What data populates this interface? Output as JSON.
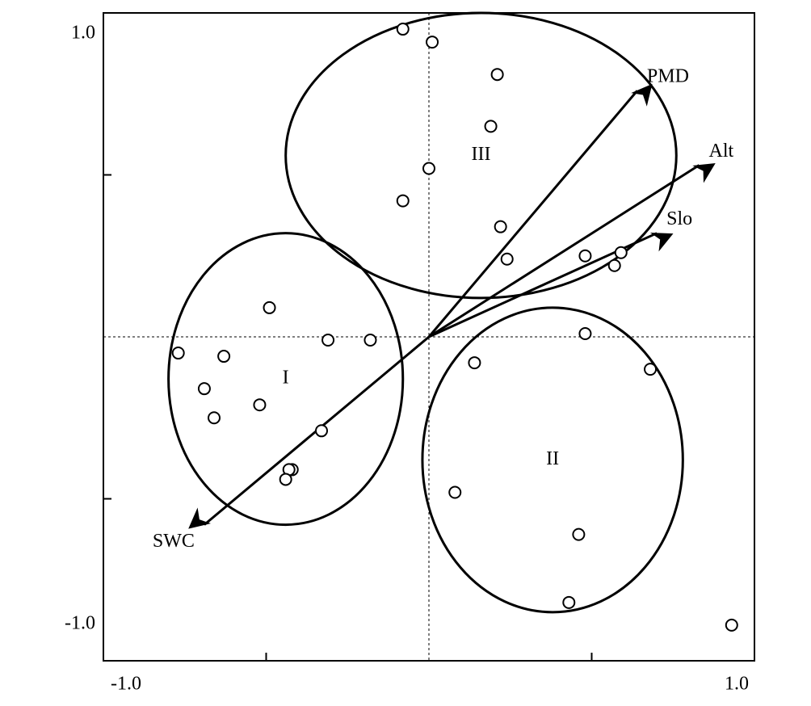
{
  "chart_data": {
    "type": "scatter",
    "xlim": [
      -1,
      1
    ],
    "ylim": [
      -1,
      1
    ],
    "xticks": [
      {
        "value": -1,
        "label": "-1.0"
      },
      {
        "value": -0.5,
        "label": null
      },
      {
        "value": 0.5,
        "label": null
      },
      {
        "value": 1,
        "label": "1.0"
      }
    ],
    "yticks": [
      {
        "value": -1,
        "label": "-1.0"
      },
      {
        "value": -0.5,
        "label": null
      },
      {
        "value": 0.5,
        "label": null
      },
      {
        "value": 1,
        "label": "1.0"
      }
    ],
    "zero_lines": true,
    "color": "#000000",
    "x": [
      -0.08,
      0.01,
      0.21,
      0.19,
      0.0,
      -0.08,
      0.22,
      0.24,
      0.48,
      0.59,
      0.57,
      -0.49,
      -0.31,
      -0.18,
      -0.77,
      -0.63,
      -0.69,
      -0.52,
      -0.66,
      -0.33,
      -0.42,
      -0.43,
      -0.44,
      0.48,
      0.14,
      0.68,
      0.08,
      0.46,
      0.43,
      0.93
    ],
    "values": [
      0.95,
      0.91,
      0.81,
      0.65,
      0.52,
      0.42,
      0.34,
      0.24,
      0.25,
      0.26,
      0.22,
      0.09,
      -0.01,
      -0.01,
      -0.05,
      -0.06,
      -0.16,
      -0.21,
      -0.25,
      -0.29,
      -0.41,
      -0.41,
      -0.44,
      0.01,
      -0.08,
      -0.1,
      -0.48,
      -0.61,
      -0.82,
      -0.89
    ],
    "arrows": [
      {
        "name": "PMD",
        "x": 0.64,
        "y": 0.76
      },
      {
        "name": "Alt",
        "x": 0.83,
        "y": 0.53
      },
      {
        "name": "Slo",
        "x": 0.7,
        "y": 0.32
      },
      {
        "name": "SWC",
        "x": -0.69,
        "y": -0.58
      }
    ],
    "groups": [
      {
        "label": "I",
        "cx": -0.44,
        "cy": -0.13,
        "rx": 0.36,
        "ry": 0.45
      },
      {
        "label": "II",
        "cx": 0.38,
        "cy": -0.38,
        "rx": 0.4,
        "ry": 0.47
      },
      {
        "label": "III",
        "cx": 0.16,
        "cy": 0.56,
        "rx": 0.6,
        "ry": 0.44
      }
    ]
  }
}
